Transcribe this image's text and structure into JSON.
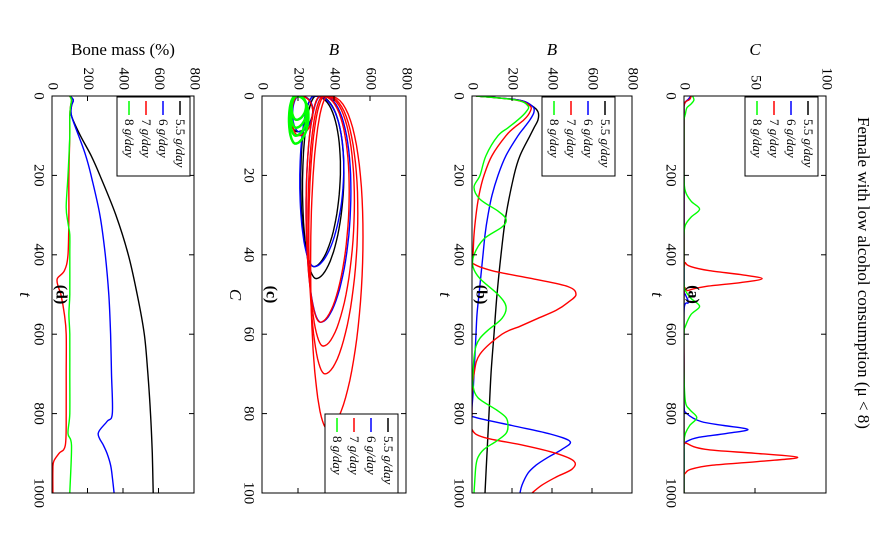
{
  "figure_title": "Female with low alcohol consumption (μ < 8)",
  "legend_units": " g/day",
  "chart_data": [
    {
      "id": "a",
      "type": "line",
      "panel_label": "(a)",
      "xlabel": "t",
      "ylabel": "C",
      "xlim": [
        0,
        1000
      ],
      "ylim": [
        0,
        100
      ],
      "x_ticks": [
        0,
        200,
        400,
        600,
        800,
        1000
      ],
      "y_ticks": [
        0,
        50,
        100
      ],
      "legend_position": "top-right",
      "series": [
        {
          "name": "5.5",
          "color": "#000000",
          "x": [
            0,
            8,
            15,
            25,
            40,
            60,
            100,
            200,
            400,
            600,
            800,
            1000
          ],
          "y": [
            5,
            4,
            1,
            0,
            0,
            0,
            0,
            0,
            0,
            0,
            0,
            0
          ]
        },
        {
          "name": "6",
          "color": "#0000ff",
          "x": [
            0,
            8,
            15,
            25,
            40,
            100,
            300,
            480,
            500,
            520,
            540,
            700,
            780,
            800,
            820,
            830,
            840,
            850,
            860,
            870,
            880,
            900,
            1000
          ],
          "y": [
            5,
            3,
            1,
            0,
            0,
            0,
            0,
            0,
            1,
            3,
            0,
            0,
            0,
            2,
            12,
            28,
            45,
            30,
            10,
            2,
            0,
            0,
            0
          ]
        },
        {
          "name": "7",
          "color": "#ff0000",
          "x": [
            0,
            8,
            15,
            25,
            40,
            100,
            400,
            420,
            430,
            440,
            450,
            460,
            470,
            480,
            490,
            500,
            700,
            860,
            875,
            890,
            900,
            910,
            920,
            930,
            940,
            950,
            960,
            1000
          ],
          "y": [
            5,
            4,
            1,
            0,
            0,
            0,
            0,
            1,
            5,
            18,
            40,
            55,
            40,
            15,
            3,
            0,
            0,
            0,
            2,
            15,
            50,
            80,
            55,
            20,
            5,
            1,
            0,
            0
          ]
        },
        {
          "name": "8",
          "color": "#00ff00",
          "x": [
            0,
            10,
            20,
            30,
            45,
            60,
            80,
            100,
            200,
            240,
            265,
            285,
            305,
            325,
            350,
            400,
            470,
            490,
            510,
            530,
            550,
            580,
            600,
            700,
            770,
            790,
            810,
            830,
            850,
            870,
            900,
            1000
          ],
          "y": [
            6,
            7,
            5,
            2,
            1,
            0,
            0,
            0,
            0,
            1,
            5,
            11,
            5,
            1,
            0,
            0,
            0,
            1,
            5,
            11,
            5,
            1,
            0,
            0,
            1,
            4,
            9,
            4,
            1,
            0,
            0,
            0
          ]
        }
      ]
    },
    {
      "id": "b",
      "type": "line",
      "panel_label": "(b)",
      "xlabel": "t",
      "ylabel": "B",
      "xlim": [
        0,
        1000
      ],
      "ylim": [
        0,
        800
      ],
      "x_ticks": [
        0,
        200,
        400,
        600,
        800,
        1000
      ],
      "y_ticks": [
        0,
        200,
        400,
        600,
        800
      ],
      "legend_position": "top-right",
      "series": [
        {
          "name": "5.5",
          "color": "#000000",
          "x": [
            0,
            10,
            25,
            40,
            60,
            80,
            100,
            150,
            200,
            300,
            400,
            500,
            600,
            700,
            800,
            900,
            1000
          ],
          "y": [
            20,
            230,
            300,
            330,
            330,
            310,
            290,
            240,
            210,
            170,
            145,
            125,
            110,
            95,
            85,
            75,
            65
          ]
        },
        {
          "name": "6",
          "color": "#0000ff",
          "x": [
            0,
            10,
            25,
            40,
            60,
            80,
            100,
            150,
            200,
            250,
            300,
            350,
            400,
            450,
            500,
            550,
            600,
            650,
            700,
            750,
            800,
            810,
            830,
            850,
            870,
            890,
            910,
            930,
            950,
            980,
            1000
          ],
          "y": [
            20,
            230,
            300,
            310,
            290,
            260,
            230,
            170,
            130,
            100,
            80,
            65,
            55,
            45,
            35,
            25,
            20,
            15,
            10,
            5,
            0,
            20,
            200,
            380,
            490,
            450,
            380,
            320,
            280,
            250,
            240
          ]
        },
        {
          "name": "7",
          "color": "#ff0000",
          "x": [
            0,
            10,
            25,
            40,
            60,
            80,
            100,
            150,
            200,
            250,
            300,
            350,
            400,
            420,
            440,
            460,
            480,
            500,
            520,
            540,
            560,
            580,
            600,
            650,
            700,
            750,
            800,
            840,
            860,
            880,
            900,
            920,
            940,
            960,
            980,
            1000
          ],
          "y": [
            20,
            220,
            290,
            290,
            260,
            210,
            170,
            100,
            60,
            35,
            20,
            10,
            5,
            0,
            100,
            300,
            480,
            520,
            480,
            420,
            330,
            240,
            150,
            40,
            10,
            0,
            0,
            0,
            60,
            260,
            420,
            510,
            500,
            420,
            350,
            300
          ]
        },
        {
          "name": "8",
          "color": "#00ff00",
          "x": [
            0,
            10,
            25,
            40,
            60,
            80,
            100,
            150,
            200,
            230,
            260,
            290,
            310,
            330,
            360,
            400,
            430,
            460,
            500,
            530,
            560,
            590,
            610,
            630,
            660,
            700,
            730,
            760,
            790,
            810,
            830,
            850,
            870,
            890,
            910,
            930,
            960,
            1000
          ],
          "y": [
            20,
            220,
            280,
            270,
            230,
            180,
            130,
            70,
            40,
            10,
            40,
            130,
            170,
            150,
            60,
            10,
            5,
            40,
            130,
            170,
            150,
            80,
            40,
            20,
            10,
            5,
            5,
            30,
            120,
            170,
            180,
            170,
            120,
            60,
            30,
            20,
            15,
            10
          ]
        }
      ]
    },
    {
      "id": "c",
      "type": "line",
      "panel_label": "(c)",
      "xlabel": "C",
      "ylabel": "B",
      "xlim": [
        0,
        100
      ],
      "ylim": [
        0,
        800
      ],
      "x_ticks": [
        0,
        20,
        40,
        60,
        80,
        100
      ],
      "y_ticks": [
        0,
        200,
        400,
        600,
        800
      ],
      "legend_position": "bottom-right",
      "series": [
        {
          "name": "5.5",
          "color": "#000000",
          "loops": [
            {
              "cmax": 46,
              "bmin": 225,
              "bmax": 470
            },
            {
              "cmax": 43,
              "bmin": 215,
              "bmax": 450
            },
            {
              "cmax": 9,
              "bmin": 155,
              "bmax": 290
            }
          ]
        },
        {
          "name": "6",
          "color": "#0000ff",
          "loops": [
            {
              "cmax": 57,
              "bmin": 245,
              "bmax": 510
            },
            {
              "cmax": 43,
              "bmin": 210,
              "bmax": 470
            },
            {
              "cmax": 9,
              "bmin": 170,
              "bmax": 290
            }
          ]
        },
        {
          "name": "7",
          "color": "#ff0000",
          "loops": [
            {
              "cmax": 84,
              "bmin": 270,
              "bmax": 580
            },
            {
              "cmax": 70,
              "bmin": 260,
              "bmax": 550
            },
            {
              "cmax": 63,
              "bmin": 255,
              "bmax": 530
            },
            {
              "cmax": 57,
              "bmin": 245,
              "bmax": 500
            },
            {
              "cmax": 10,
              "bmin": 165,
              "bmax": 290
            }
          ]
        },
        {
          "name": "8",
          "color": "#00ff00",
          "loops": [
            {
              "cmax": 12,
              "bmin": 150,
              "bmax": 265
            },
            {
              "cmax": 10,
              "bmin": 155,
              "bmax": 260
            },
            {
              "cmax": 8,
              "bmin": 160,
              "bmax": 255
            },
            {
              "cmax": 6,
              "bmin": 165,
              "bmax": 250
            }
          ]
        }
      ]
    },
    {
      "id": "d",
      "type": "line",
      "panel_label": "(d)",
      "xlabel": "t",
      "ylabel": "Bone mass (%)",
      "xlim": [
        0,
        1000
      ],
      "ylim": [
        0,
        800
      ],
      "x_ticks": [
        0,
        200,
        400,
        600,
        800,
        1000
      ],
      "y_ticks": [
        0,
        200,
        400,
        600,
        800
      ],
      "legend_position": "top-right",
      "series": [
        {
          "name": "5.5",
          "color": "#000000",
          "x": [
            0,
            10,
            25,
            50,
            100,
            150,
            200,
            300,
            400,
            500,
            600,
            700,
            800,
            900,
            1000
          ],
          "y": [
            100,
            120,
            110,
            110,
            160,
            220,
            270,
            360,
            430,
            480,
            520,
            540,
            555,
            565,
            570
          ]
        },
        {
          "name": "6",
          "color": "#0000ff",
          "x": [
            0,
            10,
            25,
            50,
            100,
            150,
            200,
            300,
            400,
            500,
            600,
            700,
            800,
            820,
            850,
            880,
            900,
            930,
            960,
            1000
          ],
          "y": [
            100,
            120,
            110,
            110,
            150,
            190,
            220,
            270,
            300,
            320,
            330,
            335,
            340,
            310,
            260,
            290,
            310,
            330,
            340,
            350
          ]
        },
        {
          "name": "7",
          "color": "#ff0000",
          "x": [
            0,
            10,
            25,
            50,
            100,
            200,
            300,
            400,
            440,
            460,
            480,
            500,
            550,
            600,
            700,
            800,
            880,
            900,
            920,
            940,
            1000
          ],
          "y": [
            100,
            110,
            105,
            100,
            100,
            95,
            95,
            90,
            70,
            30,
            35,
            50,
            70,
            80,
            80,
            80,
            75,
            40,
            10,
            5,
            5
          ]
        },
        {
          "name": "8",
          "color": "#00ff00",
          "x": [
            0,
            10,
            25,
            50,
            100,
            200,
            280,
            320,
            350,
            400,
            500,
            550,
            600,
            700,
            800,
            850,
            880,
            1000
          ],
          "y": [
            100,
            110,
            105,
            100,
            100,
            90,
            80,
            90,
            100,
            100,
            100,
            95,
            100,
            100,
            100,
            90,
            110,
            100
          ]
        }
      ]
    }
  ]
}
